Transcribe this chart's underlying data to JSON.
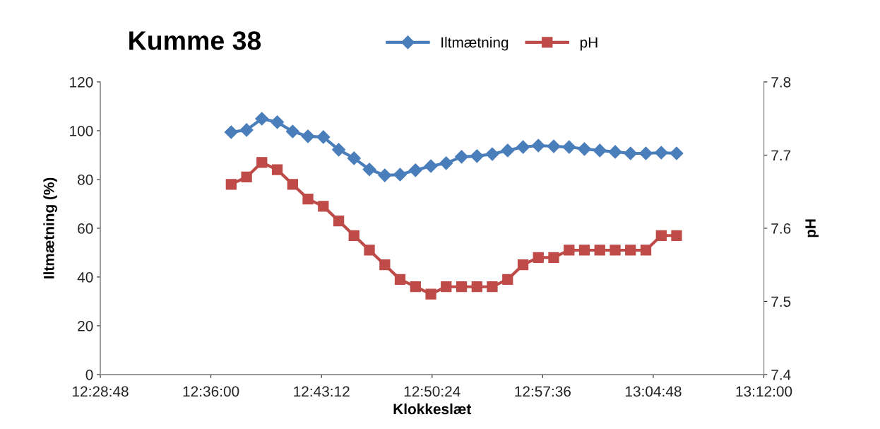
{
  "chart_data": {
    "type": "line",
    "title": "Kumme 38",
    "xlabel": "Klokkeslæt",
    "ylabel": "Iltmætning (%)",
    "y2label": "pH",
    "x": [
      12.622,
      12.6387,
      12.6553,
      12.672,
      12.6887,
      12.7053,
      12.722,
      12.7387,
      12.7553,
      12.772,
      12.7887,
      12.8053,
      12.822,
      12.8387,
      12.8553,
      12.872,
      12.8887,
      12.9053,
      12.922,
      12.9387,
      12.9553,
      12.972,
      12.9887,
      13.0053,
      13.022,
      13.0387,
      13.0553,
      13.072,
      13.0887,
      13.1053
    ],
    "series": [
      {
        "name": "Iltmætning",
        "color": "#4a7ebb",
        "marker": "diamond",
        "values": [
          99.4,
          100.3,
          104.9,
          103.5,
          99.7,
          97.7,
          97.4,
          92.2,
          88.7,
          84.1,
          81.7,
          82.0,
          83.8,
          85.5,
          86.7,
          89.3,
          89.6,
          90.4,
          91.9,
          93.3,
          93.9,
          93.6,
          93.3,
          92.5,
          91.9,
          91.3,
          90.7,
          90.7,
          91.0,
          90.7
        ]
      },
      {
        "name": "pH",
        "color": "#be4b48",
        "marker": "square",
        "axis": "y2",
        "values": [
          7.66,
          7.67,
          7.69,
          7.68,
          7.66,
          7.64,
          7.63,
          7.61,
          7.59,
          7.57,
          7.55,
          7.53,
          7.52,
          7.51,
          7.52,
          7.52,
          7.52,
          7.52,
          7.53,
          7.55,
          7.56,
          7.56,
          7.57,
          7.57,
          7.57,
          7.57,
          7.57,
          7.57,
          7.59,
          7.59
        ]
      }
    ],
    "xlim": [
      12.48,
      13.2
    ],
    "xticks": [
      {
        "value": 12.48,
        "label": "12:28:48"
      },
      {
        "value": 12.6,
        "label": "12:36:00"
      },
      {
        "value": 12.72,
        "label": "12:43:12"
      },
      {
        "value": 12.84,
        "label": "12:50:24"
      },
      {
        "value": 12.96,
        "label": "12:57:36"
      },
      {
        "value": 13.08,
        "label": "13:04:48"
      },
      {
        "value": 13.2,
        "label": "13:12:00"
      }
    ],
    "ylim": [
      0,
      120
    ],
    "yticks": [
      0,
      20,
      40,
      60,
      80,
      100,
      120
    ],
    "y2lim": [
      7.4,
      7.8
    ],
    "y2ticks": [
      {
        "value": 7.4,
        "label": "7.4"
      },
      {
        "value": 7.5,
        "label": "7.5"
      },
      {
        "value": 7.6,
        "label": "7.6"
      },
      {
        "value": 7.7,
        "label": "7.7"
      },
      {
        "value": 7.8,
        "label": "7.8"
      }
    ],
    "grid": false,
    "legend": "top",
    "line_style": "solid"
  }
}
